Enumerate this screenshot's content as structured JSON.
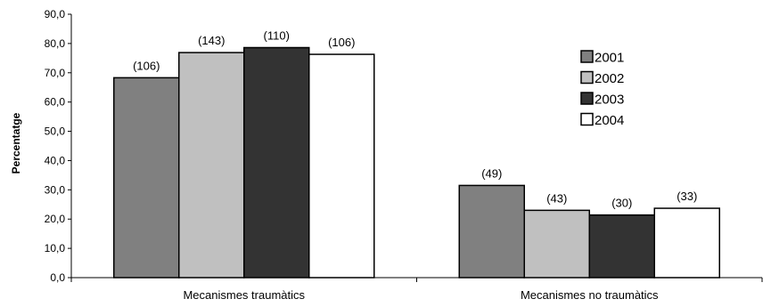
{
  "chart_data": {
    "type": "bar",
    "title": "",
    "xlabel": "",
    "ylabel": "Percentatge",
    "ylim": [
      0,
      90
    ],
    "ytick_step": 10,
    "ytick_labels": [
      "0,0",
      "10,0",
      "20,0",
      "30,0",
      "40,0",
      "50,0",
      "60,0",
      "70,0",
      "80,0",
      "90,0"
    ],
    "categories": [
      "Mecanismes traumàtics",
      "Mecanismes no traumàtics"
    ],
    "grid": false,
    "legend_position": "right",
    "series": [
      {
        "name": "2001",
        "color": "#808080",
        "values": [
          68.3,
          31.5
        ],
        "labels": [
          "(106)",
          "(49)"
        ]
      },
      {
        "name": "2002",
        "color": "#c0c0c0",
        "values": [
          76.9,
          23.0
        ],
        "labels": [
          "(143)",
          "(43)"
        ]
      },
      {
        "name": "2003",
        "color": "#333333",
        "values": [
          78.6,
          21.4
        ],
        "labels": [
          "(110)",
          "(30)"
        ]
      },
      {
        "name": "2004",
        "color": "#ffffff",
        "values": [
          76.3,
          23.7
        ],
        "labels": [
          "(106)",
          "(33)"
        ]
      }
    ]
  }
}
